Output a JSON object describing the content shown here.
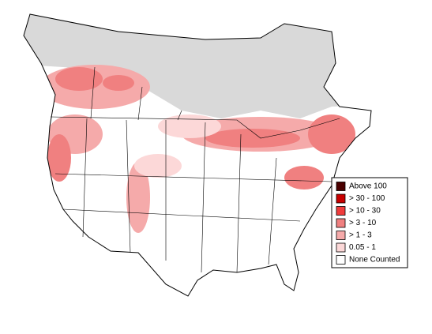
{
  "legend": {
    "items": [
      {
        "label": "Above 100",
        "color": "#4a0000"
      },
      {
        "label": "> 30 - 100",
        "color": "#c80000"
      },
      {
        "label": "> 10 - 30",
        "color": "#f03c3c"
      },
      {
        "label": "> 3 - 10",
        "color": "#f08080"
      },
      {
        "label": "> 1 - 3",
        "color": "#f5aaaa"
      },
      {
        "label": "0.05 - 1",
        "color": "#fcd8d8"
      },
      {
        "label": "None Counted",
        "color": "#ffffff"
      }
    ]
  }
}
